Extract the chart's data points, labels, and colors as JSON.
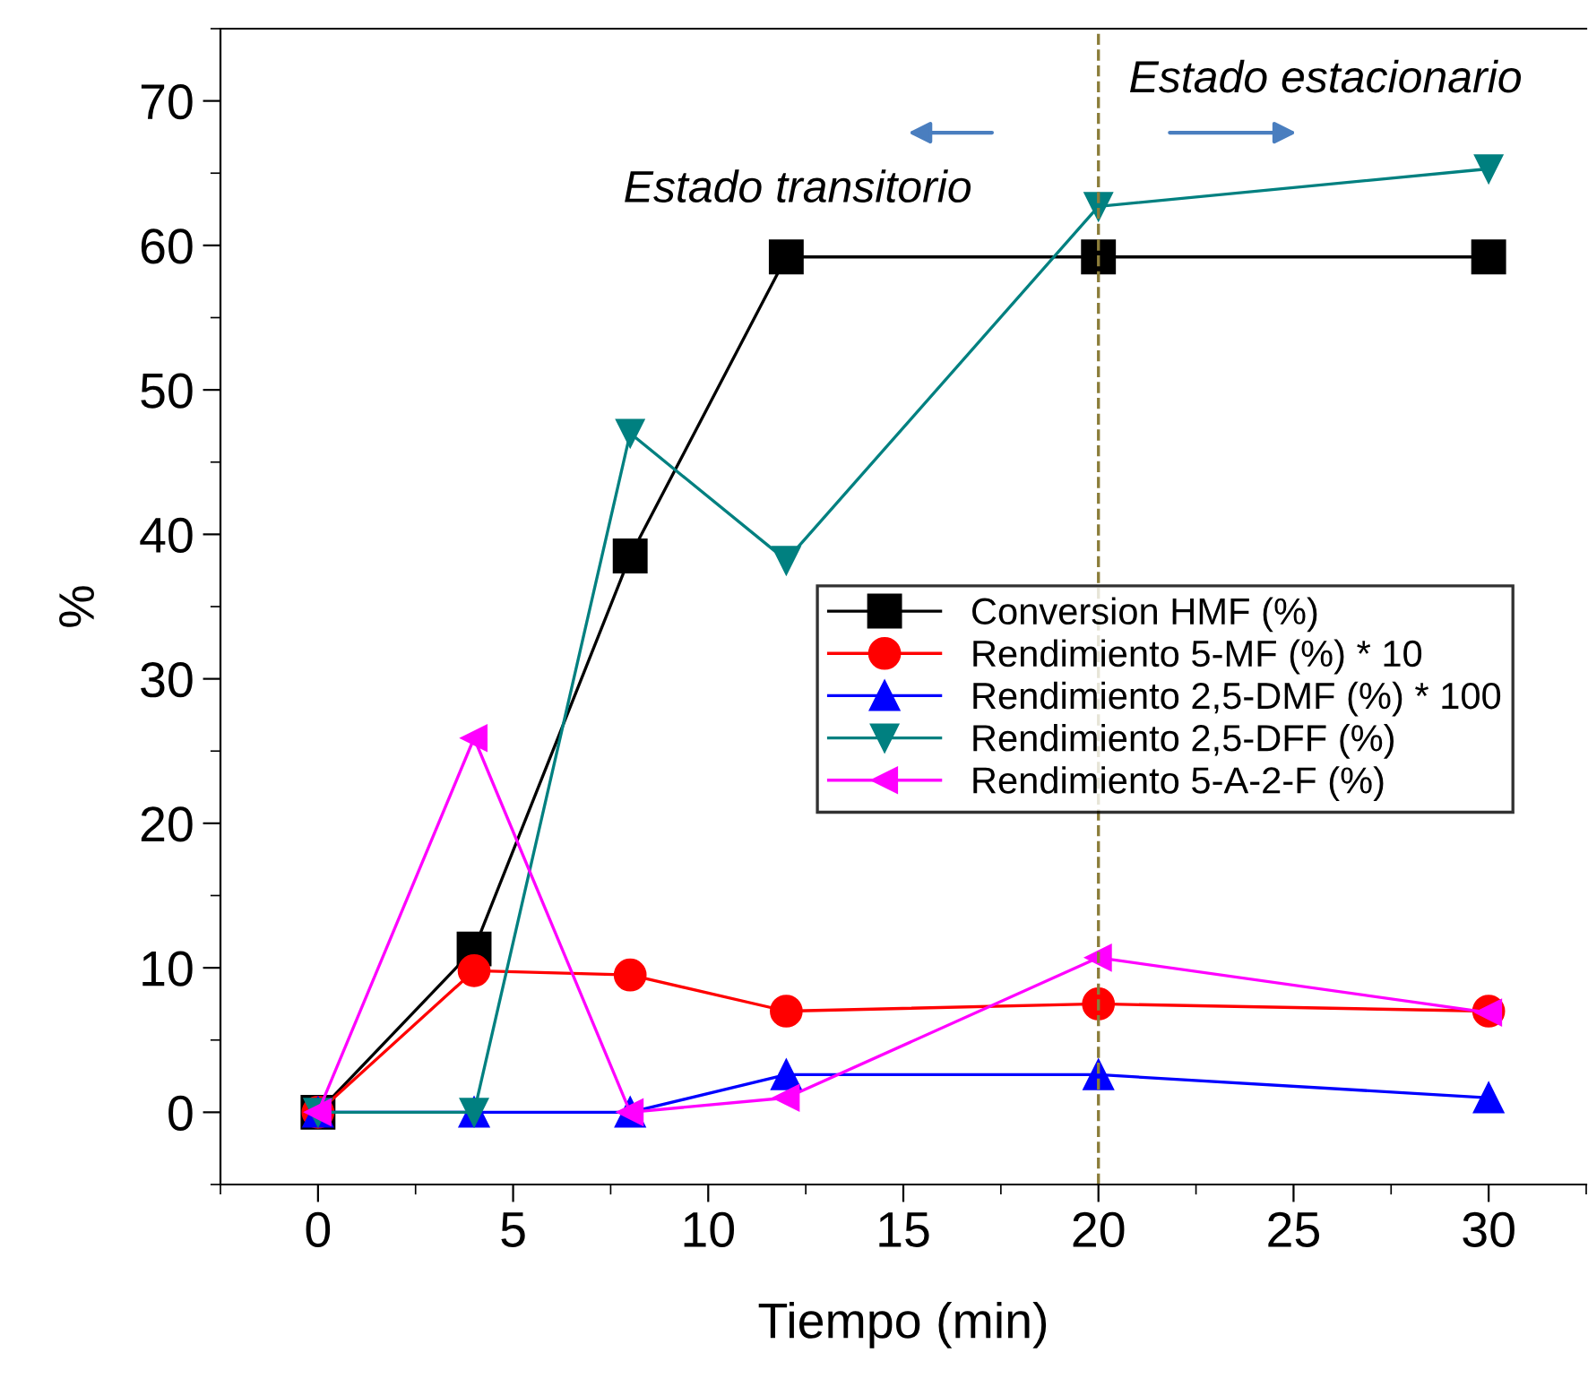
{
  "chart_data": {
    "type": "line",
    "xlabel": "Tiempo (min)",
    "ylabel": "%",
    "x": [
      0,
      4,
      8,
      12,
      20,
      30
    ],
    "series": [
      {
        "name": "Conversion HMF (%)",
        "color": "#000000",
        "marker": "square",
        "values": [
          0,
          11.3,
          38.5,
          59.2,
          59.2,
          59.2
        ]
      },
      {
        "name": "Rendimiento 5-MF (%) * 10",
        "color": "#ff0000",
        "marker": "circle",
        "values": [
          0,
          9.8,
          9.5,
          7.0,
          7.5,
          7.0
        ]
      },
      {
        "name": "Rendimiento 2,5-DMF (%) * 100",
        "color": "#0000ff",
        "marker": "triangle",
        "values": [
          0,
          0,
          0,
          2.6,
          2.6,
          1.0
        ]
      },
      {
        "name": "Rendimiento 2,5-DFF (%)",
        "color": "#008080",
        "marker": "triangle_down",
        "values": [
          0,
          0,
          47.0,
          38.2,
          62.7,
          65.3
        ]
      },
      {
        "name": "Rendimiento 5-A-2-F (%)",
        "color": "#ff00ff",
        "marker": "triangle_left",
        "values": [
          0,
          25.9,
          0,
          1.0,
          10.7,
          6.9
        ]
      }
    ],
    "xlim": [
      -2.5,
      32.5
    ],
    "ylim": [
      -5,
      75
    ],
    "xticks": [
      0,
      5,
      10,
      15,
      20,
      25,
      30
    ],
    "yticks": [
      0,
      10,
      20,
      30,
      40,
      50,
      60,
      70
    ],
    "ref_lines": [
      {
        "axis": "x",
        "value": 20,
        "color": "#8b7d3a",
        "line_style": "dashed"
      }
    ],
    "annotations": [
      "Estado transitorio",
      "Estado estacionario"
    ],
    "grid": false,
    "legend": "right",
    "line_style": "solid"
  }
}
